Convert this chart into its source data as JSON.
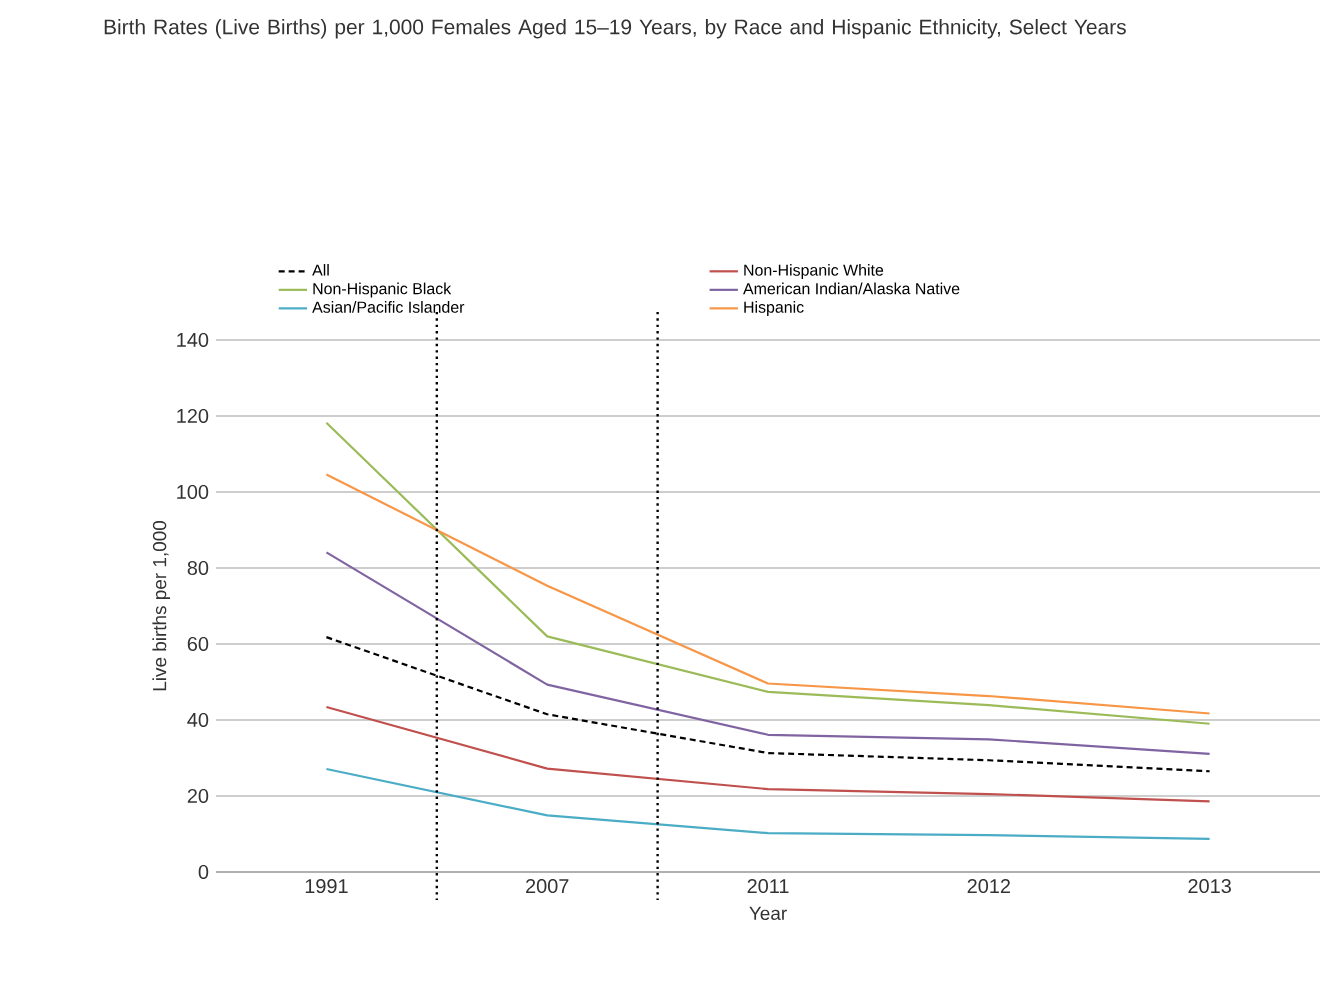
{
  "chart_data": {
    "type": "line",
    "title": "Birth Rates (Live Births) per 1,000 Females Aged 15–19 Years, by Race and Hispanic Ethnicity, Select Years",
    "xlabel": "Year",
    "ylabel": "Live births per 1,000",
    "categories": [
      "1991",
      "2007",
      "2011",
      "2012",
      "2013"
    ],
    "series": [
      {
        "name": "All",
        "color": "#000000",
        "line_style": "dashed",
        "values": [
          61.8,
          41.5,
          31.3,
          29.4,
          26.5
        ]
      },
      {
        "name": "Non-Hispanic White",
        "color": "#c0504d",
        "values": [
          43.4,
          27.2,
          21.8,
          20.5,
          18.6
        ]
      },
      {
        "name": "Non-Hispanic Black",
        "color": "#9bbb59",
        "values": [
          118.2,
          62.0,
          47.4,
          43.9,
          39.0
        ]
      },
      {
        "name": "American Indian/Alaska Native",
        "color": "#8064a2",
        "values": [
          84.1,
          49.3,
          36.1,
          34.9,
          31.1
        ]
      },
      {
        "name": "Asian/Pacific Islander",
        "color": "#4bacc6",
        "values": [
          27.1,
          14.9,
          10.2,
          9.7,
          8.7
        ]
      },
      {
        "name": "Hispanic",
        "color": "#f79646",
        "values": [
          104.6,
          75.3,
          49.6,
          46.3,
          41.7
        ]
      }
    ],
    "ylim": [
      0,
      140
    ],
    "yticks": [
      0,
      20,
      40,
      60,
      80,
      100,
      120,
      140
    ],
    "grid": "y",
    "legend": "top",
    "line_style": "solid",
    "marker": "none"
  }
}
